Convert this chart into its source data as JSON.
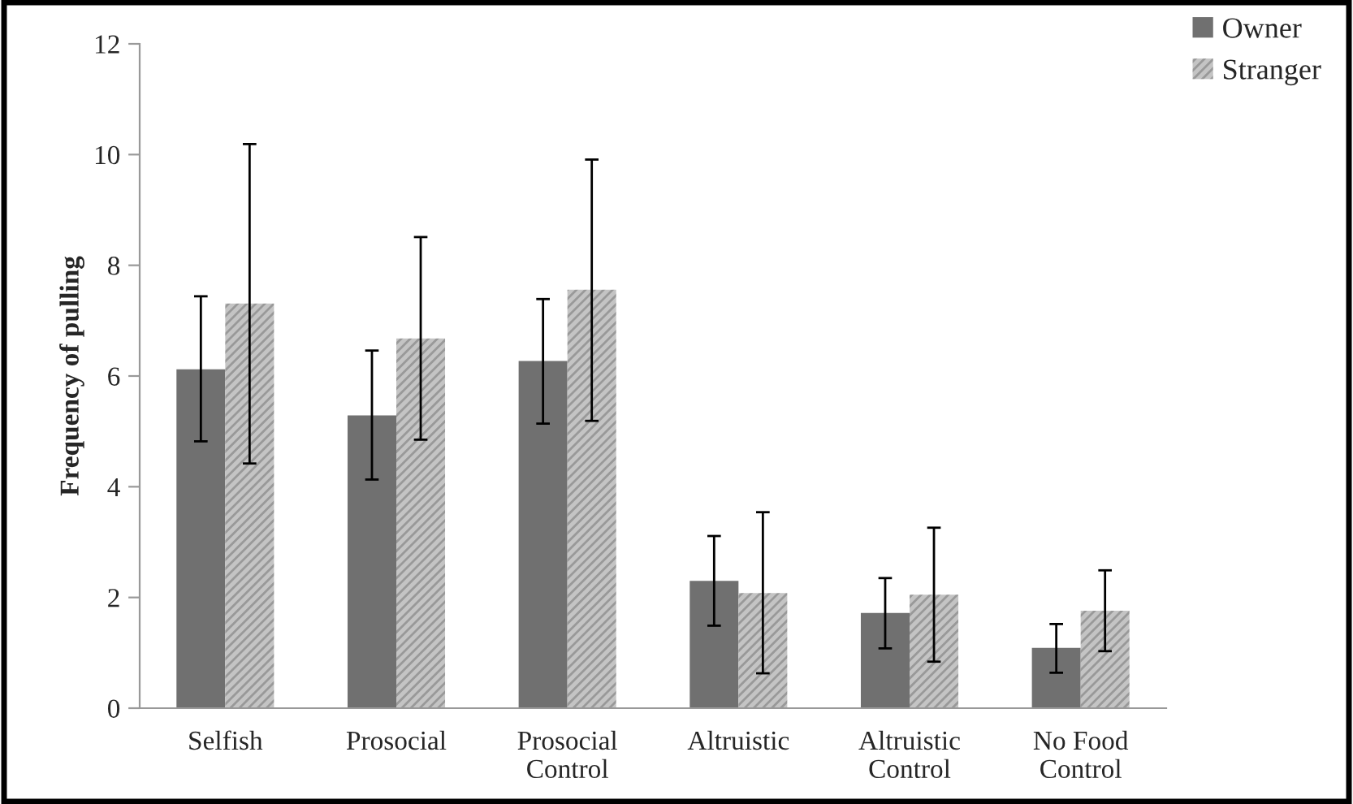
{
  "chart_data": {
    "type": "bar",
    "ylabel": "Frequency of pulling",
    "categories": [
      "Selfish",
      "Prosocial",
      "Prosocial\nControl",
      "Altruistic",
      "Altruistic\nControl",
      "No Food\nControl"
    ],
    "series": [
      {
        "name": "Owner",
        "color": "#707070",
        "values": [
          6.12,
          5.29,
          6.27,
          2.3,
          1.72,
          1.09
        ],
        "errors": [
          [
            4.82,
            7.44
          ],
          [
            4.13,
            6.46
          ],
          [
            5.14,
            7.39
          ],
          [
            1.49,
            3.11
          ],
          [
            1.08,
            2.35
          ],
          [
            0.64,
            1.52
          ]
        ]
      },
      {
        "name": "Stranger",
        "color": "#c4c4c4",
        "values": [
          7.31,
          6.68,
          7.56,
          2.08,
          2.05,
          1.76
        ],
        "errors": [
          [
            4.42,
            10.19
          ],
          [
            4.85,
            8.51
          ],
          [
            5.19,
            9.91
          ],
          [
            0.63,
            3.54
          ],
          [
            0.84,
            3.26
          ],
          [
            1.03,
            2.49
          ]
        ]
      }
    ],
    "ylim": [
      0,
      12
    ],
    "yticks": [
      0,
      2,
      4,
      6,
      8,
      10,
      12
    ],
    "grid": false,
    "legend": "top right"
  }
}
